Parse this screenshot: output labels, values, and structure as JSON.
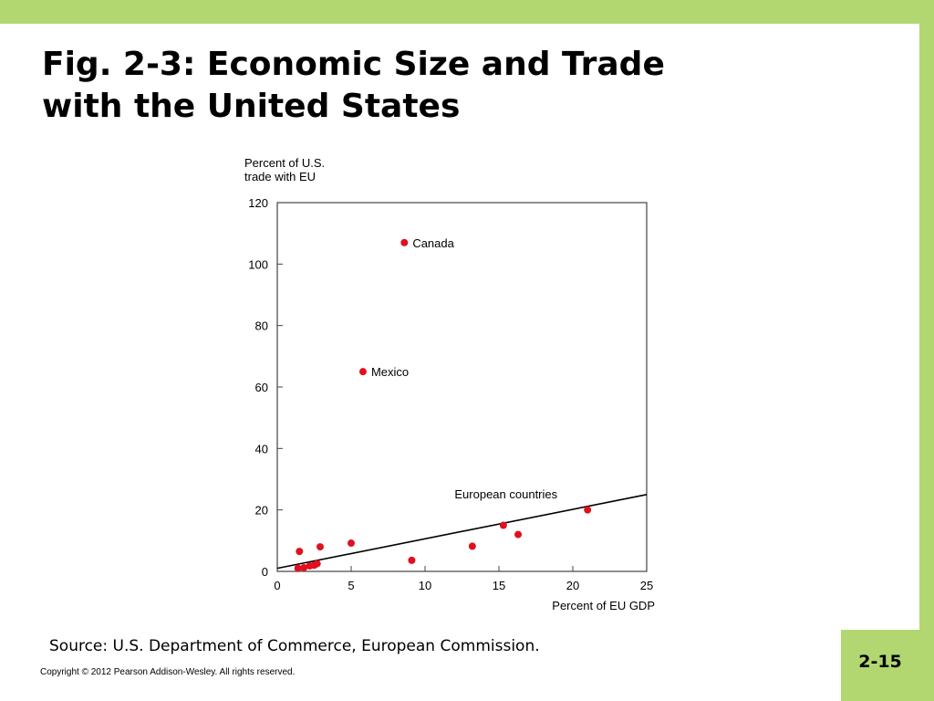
{
  "slide": {
    "title_line1": "Fig. 2-3: Economic Size and Trade",
    "title_line2": "with the United States",
    "source": "Source: U.S. Department of Commerce, European Commission.",
    "copyright": "Copyright © 2012 Pearson Addison-Wesley. All rights reserved.",
    "page_number": "2-15",
    "accent_color": "#b2d770"
  },
  "chart_data": {
    "type": "scatter",
    "ylabel_line1": "Percent of U.S.",
    "ylabel_line2": "trade with EU",
    "xlabel": "Percent of EU GDP",
    "xlim": [
      0,
      25
    ],
    "ylim": [
      0,
      120
    ],
    "x_ticks": [
      "0",
      "5",
      "10",
      "15",
      "20",
      "25"
    ],
    "y_ticks": [
      "0",
      "20",
      "40",
      "60",
      "80",
      "100",
      "120"
    ],
    "grid": false,
    "point_color": "#e0101e",
    "points": [
      {
        "x": 8.6,
        "y": 107,
        "label": "Canada"
      },
      {
        "x": 5.8,
        "y": 65,
        "label": "Mexico"
      },
      {
        "x": 1.5,
        "y": 6.5
      },
      {
        "x": 2.9,
        "y": 8
      },
      {
        "x": 5.0,
        "y": 9.2
      },
      {
        "x": 1.4,
        "y": 1
      },
      {
        "x": 1.8,
        "y": 1.2
      },
      {
        "x": 2.2,
        "y": 1.8
      },
      {
        "x": 2.5,
        "y": 2
      },
      {
        "x": 2.7,
        "y": 2.5
      },
      {
        "x": 9.1,
        "y": 3.6
      },
      {
        "x": 13.2,
        "y": 8.2
      },
      {
        "x": 15.3,
        "y": 15
      },
      {
        "x": 16.3,
        "y": 12
      },
      {
        "x": 21.0,
        "y": 20
      }
    ],
    "trend_line": {
      "x": [
        0,
        25
      ],
      "y": [
        1,
        25
      ],
      "label": "European countries",
      "label_x": 12,
      "label_y": 25
    }
  }
}
